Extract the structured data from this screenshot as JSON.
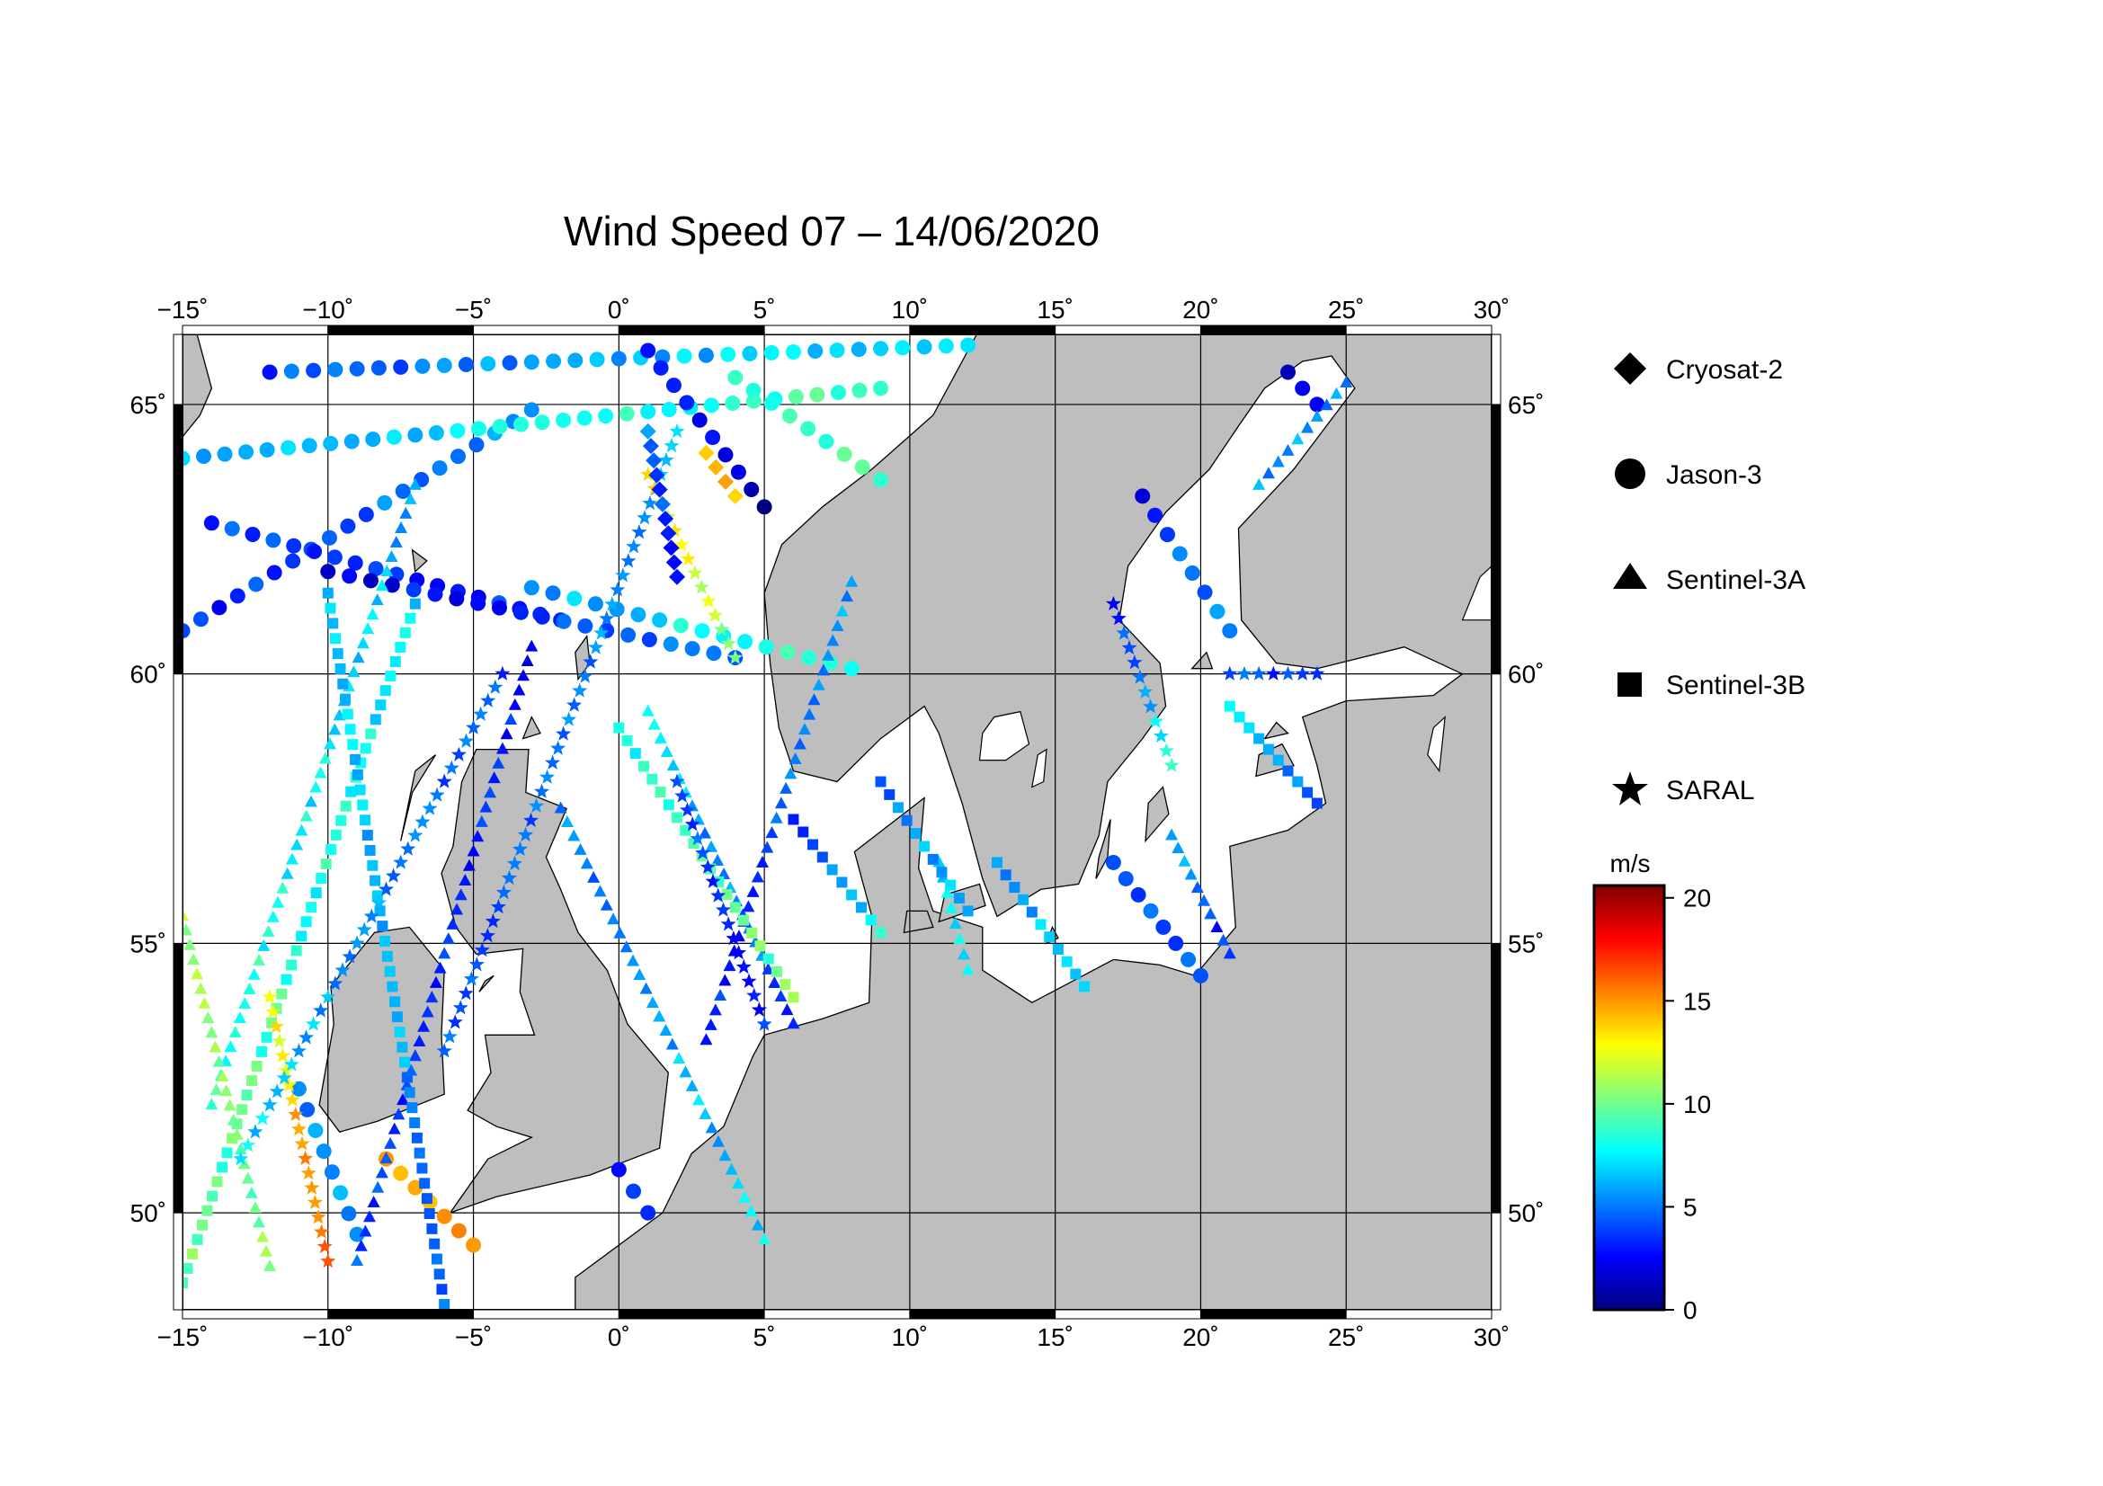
{
  "map": {
    "title": "Wind Speed 07 – 14/06/2020",
    "lon_range": [
      -15,
      30
    ],
    "lat_range": [
      48.2,
      66.3
    ],
    "lon_ticks": [
      "−15˚",
      "−10˚",
      "−5˚",
      "0˚",
      "5˚",
      "10˚",
      "15˚",
      "20˚",
      "25˚",
      "30˚"
    ],
    "lon_tick_values": [
      -15,
      -10,
      -5,
      0,
      5,
      10,
      15,
      20,
      25,
      30
    ],
    "lat_ticks": [
      "50˚",
      "55˚",
      "60˚",
      "65˚"
    ],
    "lat_tick_values": [
      50,
      55,
      60,
      65
    ],
    "land_color": "#bebebe",
    "sea_color": "#ffffff",
    "grid": true
  },
  "legend": {
    "items": [
      {
        "label": "Cryosat-2",
        "marker": "diamond"
      },
      {
        "label": "Jason-3",
        "marker": "circle"
      },
      {
        "label": "Sentinel-3A",
        "marker": "triangle"
      },
      {
        "label": "Sentinel-3B",
        "marker": "square"
      },
      {
        "label": "SARAL",
        "marker": "star"
      }
    ]
  },
  "colorbar": {
    "unit": "m/s",
    "range": [
      0,
      20.6
    ],
    "ticks": [
      "0",
      "5",
      "10",
      "15",
      "20"
    ],
    "tick_values": [
      0,
      5,
      10,
      15,
      20
    ],
    "colors": [
      "#00007f",
      "#0000ff",
      "#007fff",
      "#00ffff",
      "#7fff7f",
      "#ffff00",
      "#ff7f00",
      "#ff0000",
      "#7f0000"
    ]
  },
  "chart_data": {
    "type": "scatter",
    "title": "Wind Speed 07 – 14/06/2020",
    "x_label": "",
    "y_label": "",
    "note_units": "lon/lat degrees, wind speed m/s",
    "tracks": [
      {
        "sat": "Jason-3",
        "from": [
          -15,
          60.8
        ],
        "to": [
          -3,
          64.9
        ],
        "w": [
          3,
          6
        ]
      },
      {
        "sat": "Jason-3",
        "from": [
          -14,
          62.8
        ],
        "to": [
          -2,
          61.0
        ],
        "w": [
          4,
          3
        ]
      },
      {
        "sat": "Jason-3",
        "from": [
          -15,
          64.0
        ],
        "to": [
          9,
          65.3
        ],
        "w": [
          6,
          9
        ]
      },
      {
        "sat": "Jason-3",
        "from": [
          -12,
          65.6
        ],
        "to": [
          12,
          66.1
        ],
        "w": [
          4,
          8
        ]
      },
      {
        "sat": "Jason-3",
        "from": [
          -10,
          61.9
        ],
        "to": [
          4,
          60.3
        ],
        "w": [
          2,
          5
        ]
      },
      {
        "sat": "Jason-3",
        "from": [
          -3,
          61.6
        ],
        "to": [
          8,
          60.1
        ],
        "w": [
          6,
          9
        ]
      },
      {
        "sat": "Jason-3",
        "from": [
          4,
          65.5
        ],
        "to": [
          9,
          63.6
        ],
        "w": [
          8,
          9
        ]
      },
      {
        "sat": "Jason-3",
        "from": [
          1,
          66.0
        ],
        "to": [
          5,
          63.1
        ],
        "w": [
          3,
          1
        ]
      },
      {
        "sat": "Jason-3",
        "from": [
          -8,
          51.0
        ],
        "to": [
          -5,
          49.4
        ],
        "w": [
          14,
          15
        ]
      },
      {
        "sat": "Jason-3",
        "from": [
          0,
          50.8
        ],
        "to": [
          1,
          50.0
        ],
        "w": [
          3,
          3
        ]
      },
      {
        "sat": "Jason-3",
        "from": [
          18,
          63.3
        ],
        "to": [
          21,
          60.8
        ],
        "w": [
          3,
          6
        ]
      },
      {
        "sat": "Jason-3",
        "from": [
          23,
          65.6
        ],
        "to": [
          24,
          65.0
        ],
        "w": [
          2,
          3
        ]
      },
      {
        "sat": "Jason-3",
        "from": [
          17,
          56.5
        ],
        "to": [
          20,
          54.4
        ],
        "w": [
          3,
          5
        ]
      },
      {
        "sat": "Jason-3",
        "from": [
          -11,
          52.3
        ],
        "to": [
          -9,
          49.6
        ],
        "w": [
          5,
          6
        ]
      },
      {
        "sat": "Sentinel-3A",
        "from": [
          -14,
          52.0
        ],
        "to": [
          -7,
          63.5
        ],
        "w": [
          9,
          6
        ]
      },
      {
        "sat": "Sentinel-3A",
        "from": [
          -9,
          49.1
        ],
        "to": [
          -3,
          60.5
        ],
        "w": [
          4,
          3
        ]
      },
      {
        "sat": "Sentinel-3A",
        "from": [
          -2,
          57.5
        ],
        "to": [
          5,
          49.5
        ],
        "w": [
          5,
          7
        ]
      },
      {
        "sat": "Sentinel-3A",
        "from": [
          1,
          59.3
        ],
        "to": [
          6,
          53.5
        ],
        "w": [
          7,
          4
        ]
      },
      {
        "sat": "Sentinel-3A",
        "from": [
          3,
          53.2
        ],
        "to": [
          8,
          61.7
        ],
        "w": [
          3,
          6
        ]
      },
      {
        "sat": "Sentinel-3A",
        "from": [
          11,
          56.5
        ],
        "to": [
          12,
          54.5
        ],
        "w": [
          7,
          8
        ]
      },
      {
        "sat": "Sentinel-3A",
        "from": [
          22,
          63.5
        ],
        "to": [
          25,
          65.4
        ],
        "w": [
          6,
          5
        ]
      },
      {
        "sat": "Sentinel-3A",
        "from": [
          19,
          57.0
        ],
        "to": [
          21,
          54.8
        ],
        "w": [
          6,
          3
        ]
      },
      {
        "sat": "Sentinel-3A",
        "from": [
          -15,
          55.5
        ],
        "to": [
          -12,
          49.0
        ],
        "w": [
          11,
          10
        ]
      },
      {
        "sat": "Sentinel-3B",
        "from": [
          -15,
          48.7
        ],
        "to": [
          -7,
          61.3
        ],
        "w": [
          10,
          7
        ]
      },
      {
        "sat": "Sentinel-3B",
        "from": [
          -10,
          61.5
        ],
        "to": [
          -6,
          48.3
        ],
        "w": [
          7,
          5
        ]
      },
      {
        "sat": "Sentinel-3B",
        "from": [
          6,
          57.3
        ],
        "to": [
          9,
          55.2
        ],
        "w": [
          4,
          8
        ]
      },
      {
        "sat": "Sentinel-3B",
        "from": [
          13,
          56.5
        ],
        "to": [
          16,
          54.2
        ],
        "w": [
          5,
          8
        ]
      },
      {
        "sat": "Sentinel-3B",
        "from": [
          0,
          59.0
        ],
        "to": [
          6,
          54.0
        ],
        "w": [
          8,
          10
        ]
      },
      {
        "sat": "Sentinel-3B",
        "from": [
          9,
          58.0
        ],
        "to": [
          12,
          55.6
        ],
        "w": [
          5,
          7
        ]
      },
      {
        "sat": "Sentinel-3B",
        "from": [
          21,
          59.4
        ],
        "to": [
          24,
          57.6
        ],
        "w": [
          7,
          5
        ]
      },
      {
        "sat": "SARAL",
        "from": [
          -12,
          54.0
        ],
        "to": [
          -10,
          49.1
        ],
        "w": [
          12,
          17
        ]
      },
      {
        "sat": "SARAL",
        "from": [
          -13,
          51.0
        ],
        "to": [
          -4,
          60.0
        ],
        "w": [
          7,
          4
        ]
      },
      {
        "sat": "SARAL",
        "from": [
          -6,
          53.0
        ],
        "to": [
          2,
          64.5
        ],
        "w": [
          4,
          6
        ]
      },
      {
        "sat": "SARAL",
        "from": [
          1,
          63.7
        ],
        "to": [
          4,
          60.3
        ],
        "w": [
          13,
          11
        ]
      },
      {
        "sat": "SARAL",
        "from": [
          2,
          58.0
        ],
        "to": [
          5,
          53.5
        ],
        "w": [
          4,
          3
        ]
      },
      {
        "sat": "SARAL",
        "from": [
          17,
          61.3
        ],
        "to": [
          19,
          58.3
        ],
        "w": [
          3,
          8
        ]
      },
      {
        "sat": "SARAL",
        "from": [
          21,
          60.0
        ],
        "to": [
          24,
          60.0
        ],
        "w": [
          5,
          3
        ]
      },
      {
        "sat": "Cryosat-2",
        "from": [
          1,
          64.5
        ],
        "to": [
          2,
          61.8
        ],
        "w": [
          5,
          3
        ]
      },
      {
        "sat": "Cryosat-2",
        "from": [
          3,
          64.1
        ],
        "to": [
          4,
          63.3
        ],
        "w": [
          13,
          14
        ]
      }
    ]
  }
}
